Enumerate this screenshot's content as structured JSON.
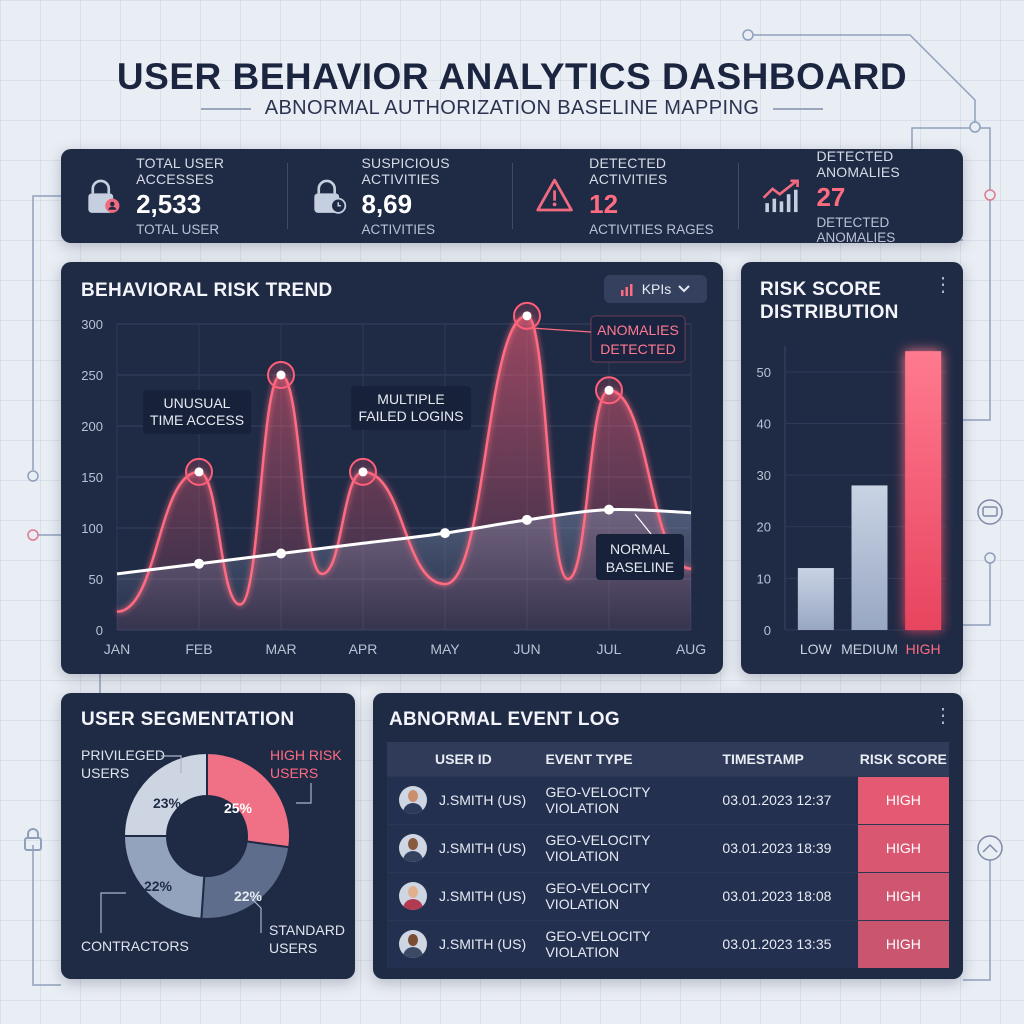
{
  "header": {
    "title": "USER BEHAVIOR ANALYTICS DASHBOARD",
    "subtitle": "ABNORMAL AUTHORIZATION BASELINE MAPPING"
  },
  "kpis": [
    {
      "label": "TOTAL USER ACCESSES",
      "value": "2,533",
      "sub": "TOTAL USER",
      "icon": "lock-user-icon",
      "accent": "#ffffff"
    },
    {
      "label": "SUSPICIOUS ACTIVITIES",
      "value": "8,69",
      "sub": "ACTIVITIES",
      "icon": "lock-clock-icon",
      "accent": "#ffffff"
    },
    {
      "label": "DETECTED ACTIVITIES",
      "value": "12",
      "sub": "ACTIVITIES RAGES",
      "icon": "warning-icon",
      "accent": "#ff6c82"
    },
    {
      "label": "DETECTED ANOMALIES",
      "value": "27",
      "sub": "DETECTED ANOMALIES",
      "icon": "trend-up-icon",
      "accent": "#ff6c82"
    }
  ],
  "trend_panel": {
    "title": "BEHAVIORAL RISK TREND",
    "dropdown_label": "KPIs",
    "annotations": {
      "unusual": [
        "UNUSUAL",
        "TIME ACCESS"
      ],
      "failed": [
        "MULTIPLE",
        "FAILED LOGINS"
      ],
      "anomalies": [
        "ANOMALIES",
        "DETECTED"
      ],
      "baseline": [
        "NORMAL",
        "BASELINE"
      ]
    }
  },
  "distribution_panel": {
    "title_line1": "RISK SCORE",
    "title_line2": "DISTRIBUTION"
  },
  "segmentation_panel": {
    "title": "USER SEGMENTATION",
    "segments": [
      {
        "name": [
          "HIGH RISK",
          "USERS"
        ],
        "pct_label": "25%",
        "value": 25,
        "color": "#f07186"
      },
      {
        "name": [
          "STANDARD",
          "USERS"
        ],
        "pct_label": "22%",
        "value": 22,
        "color": "#5e6d8c"
      },
      {
        "name": [
          "CONTRACTORS"
        ],
        "pct_label": "22%",
        "value": 22,
        "color": "#93a2bd"
      },
      {
        "name": [
          "PRIVILEGED",
          "USERS"
        ],
        "pct_label": "23%",
        "value": 23,
        "color": "#cdd5e3"
      }
    ]
  },
  "event_log": {
    "title": "ABNORMAL EVENT LOG",
    "columns": [
      "USER ID",
      "EVENT TYPE",
      "TIMESTAMP",
      "RISK SCORE"
    ],
    "rows": [
      {
        "user": "J.SMITH (US)",
        "event": "GEO-VELOCITY VIOLATION",
        "timestamp": "03.01.2023 12:37",
        "risk": "HIGH"
      },
      {
        "user": "J.SMITH (US)",
        "event": "GEO-VELOCITY VIOLATION",
        "timestamp": "03.01.2023 18:39",
        "risk": "HIGH"
      },
      {
        "user": "J.SMITH (US)",
        "event": "GEO-VELOCITY VIOLATION",
        "timestamp": "03.01.2023 18:08",
        "risk": "HIGH"
      },
      {
        "user": "J.SMITH (US)",
        "event": "GEO-VELOCITY VIOLATION",
        "timestamp": "03.01.2023 13:35",
        "risk": "HIGH"
      }
    ]
  },
  "chart_data": [
    {
      "type": "line",
      "x": [
        "JAN",
        "FEB",
        "MAR",
        "APR",
        "MAY",
        "JUN",
        "JUL",
        "AUG"
      ],
      "ylim": [
        0,
        300
      ],
      "yticks": [
        0,
        50,
        100,
        150,
        200,
        250,
        300
      ],
      "series": [
        {
          "values": [
            55,
            65,
            75,
            85,
            95,
            108,
            118,
            115
          ],
          "color": "#ffffff"
        }
      ],
      "risk_peaks": [
        {
          "x": "FEB",
          "y": 155
        },
        {
          "x": "MAR",
          "y": 250
        },
        {
          "x": "APR",
          "y": 155
        },
        {
          "x": "JUN",
          "y": 308
        },
        {
          "x": "JUL",
          "y": 235
        }
      ],
      "peak_color": "#ff5f78"
    },
    {
      "type": "bar",
      "categories": [
        "LOW",
        "MEDIUM",
        "HIGH"
      ],
      "values": [
        12,
        28,
        54
      ],
      "ylim": [
        0,
        55
      ],
      "yticks": [
        0,
        10,
        20,
        30,
        40,
        50
      ],
      "colors": [
        "#b4c0d6",
        "#b4c0d6",
        "#f15a74"
      ]
    },
    {
      "type": "pie",
      "labels": [
        "HIGH RISK USERS",
        "STANDARD USERS",
        "CONTRACTORS",
        "PRIVILEGED USERS"
      ],
      "values": [
        25,
        22,
        22,
        23
      ]
    }
  ],
  "colors": {
    "panel": "#1f2a44",
    "accent_red": "#ff5f78",
    "baseline": "#ffffff"
  }
}
